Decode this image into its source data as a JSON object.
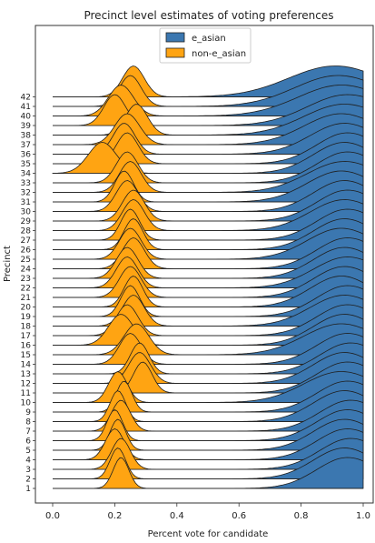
{
  "chart_data": {
    "type": "ridgeline",
    "title": "Precinct level estimates of voting preferences",
    "xlabel": "Percent vote for candidate",
    "ylabel": "Precinct",
    "xlim": [
      0.0,
      1.0
    ],
    "x_ticks": [
      "0.0",
      "0.2",
      "0.4",
      "0.6",
      "0.8",
      "1.0"
    ],
    "legend": {
      "placement": "top-center",
      "entries": [
        "e_asian",
        "non-e_asian"
      ]
    },
    "colors": {
      "e_asian": "#3b77b0",
      "non-e_asian": "#ffa412"
    },
    "precincts": [
      "1",
      "2",
      "3",
      "4",
      "5",
      "6",
      "7",
      "8",
      "9",
      "10",
      "11",
      "12",
      "13",
      "14",
      "15",
      "16",
      "17",
      "18",
      "19",
      "20",
      "21",
      "22",
      "23",
      "24",
      "25",
      "26",
      "27",
      "28",
      "29",
      "30",
      "31",
      "32",
      "33",
      "34",
      "35",
      "36",
      "37",
      "38",
      "39",
      "40",
      "41",
      "42"
    ],
    "series": [
      {
        "name": "e_asian",
        "peak_means": [
          0.95,
          0.94,
          0.96,
          0.95,
          0.94,
          0.95,
          0.96,
          0.94,
          0.95,
          0.93,
          0.95,
          0.94,
          0.96,
          0.95,
          0.93,
          0.94,
          0.95,
          0.94,
          0.95,
          0.93,
          0.94,
          0.95,
          0.94,
          0.95,
          0.93,
          0.94,
          0.95,
          0.94,
          0.95,
          0.94,
          0.93,
          0.94,
          0.95,
          0.94,
          0.95,
          0.94,
          0.93,
          0.94,
          0.95,
          0.93,
          0.92,
          0.91
        ],
        "peak_sds": [
          0.1,
          0.1,
          0.1,
          0.1,
          0.1,
          0.1,
          0.1,
          0.1,
          0.1,
          0.12,
          0.1,
          0.1,
          0.1,
          0.1,
          0.12,
          0.1,
          0.1,
          0.11,
          0.1,
          0.1,
          0.1,
          0.11,
          0.1,
          0.1,
          0.11,
          0.1,
          0.1,
          0.11,
          0.1,
          0.1,
          0.11,
          0.12,
          0.1,
          0.1,
          0.1,
          0.11,
          0.12,
          0.13,
          0.13,
          0.14,
          0.14,
          0.15
        ]
      },
      {
        "name": "non-e_asian",
        "peak_means": [
          0.22,
          0.21,
          0.22,
          0.2,
          0.21,
          0.2,
          0.22,
          0.21,
          0.23,
          0.21,
          0.29,
          0.28,
          0.28,
          0.25,
          0.27,
          0.22,
          0.24,
          0.26,
          0.25,
          0.26,
          0.25,
          0.24,
          0.24,
          0.26,
          0.25,
          0.26,
          0.25,
          0.26,
          0.26,
          0.24,
          0.23,
          0.25,
          0.24,
          0.16,
          0.24,
          0.23,
          0.24,
          0.27,
          0.2,
          0.22,
          0.25,
          0.26
        ],
        "peak_sds": [
          0.025,
          0.025,
          0.03,
          0.03,
          0.025,
          0.025,
          0.03,
          0.025,
          0.025,
          0.03,
          0.03,
          0.035,
          0.03,
          0.035,
          0.04,
          0.04,
          0.035,
          0.035,
          0.03,
          0.03,
          0.035,
          0.035,
          0.035,
          0.035,
          0.035,
          0.03,
          0.03,
          0.035,
          0.035,
          0.035,
          0.03,
          0.035,
          0.035,
          0.045,
          0.035,
          0.035,
          0.04,
          0.035,
          0.035,
          0.04,
          0.035,
          0.035
        ]
      }
    ]
  }
}
